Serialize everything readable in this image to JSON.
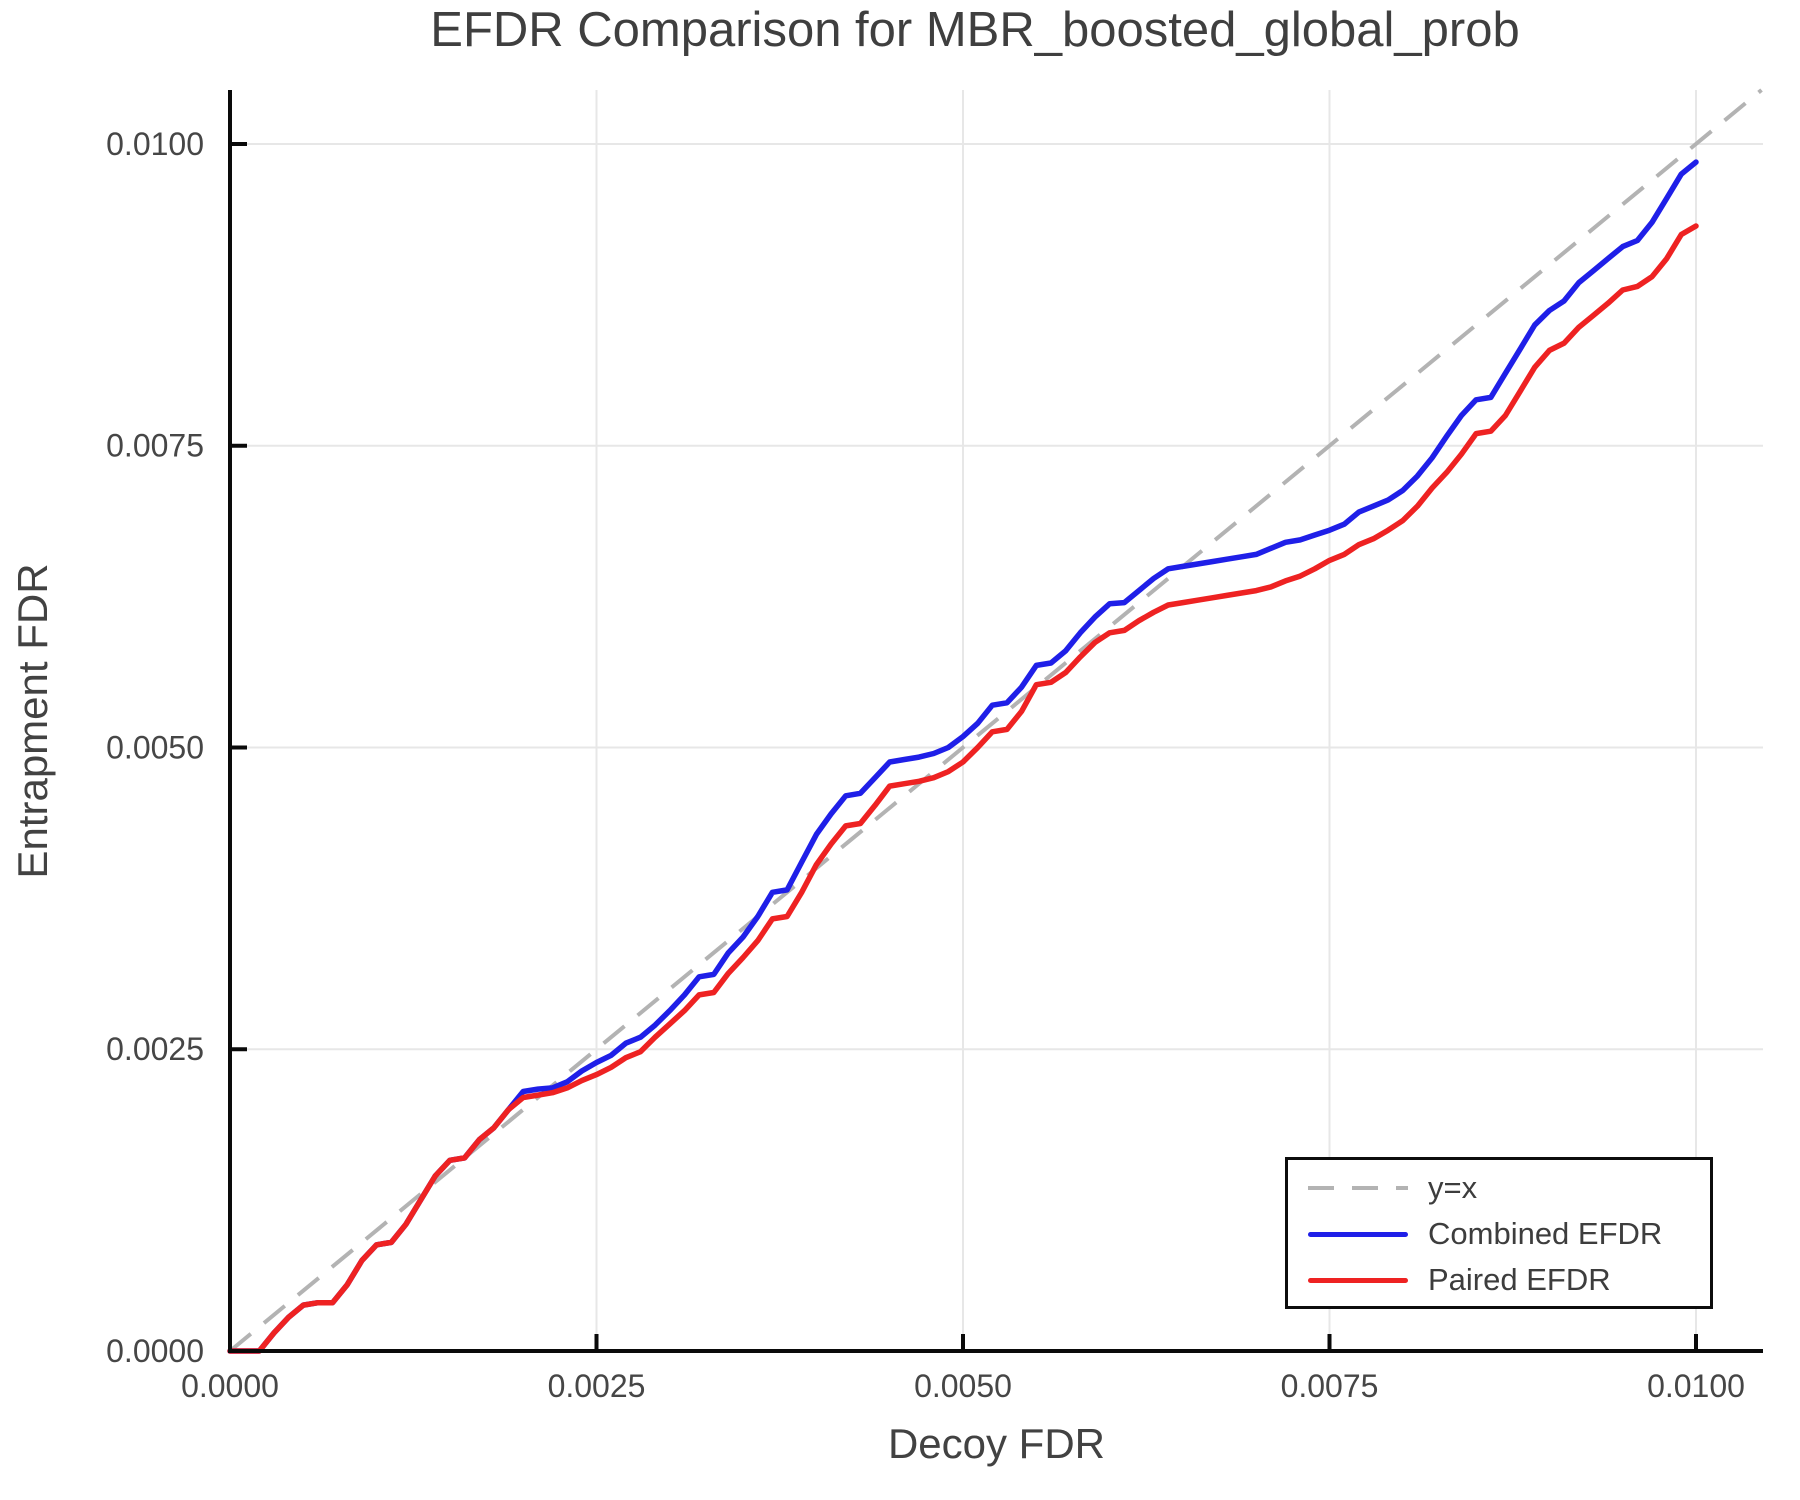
{
  "chart_data": {
    "type": "line",
    "title": "EFDR Comparison for MBR_boosted_global_prob",
    "xlabel": "Decoy FDR",
    "ylabel": "Entrapment FDR",
    "xlim": [
      0,
      0.010457
    ],
    "ylim": [
      0,
      0.010447
    ],
    "grid": true,
    "legend_position": "bottom-right",
    "x_ticks": {
      "values": [
        0,
        0.0025,
        0.005,
        0.0075,
        0.01
      ],
      "labels": [
        "0.0000",
        "0.0025",
        "0.0050",
        "0.0075",
        "0.0100"
      ]
    },
    "y_ticks": {
      "values": [
        0,
        0.0025,
        0.005,
        0.0075,
        0.01
      ],
      "labels": [
        "0.0000",
        "0.0025",
        "0.0050",
        "0.0075",
        "0.0100"
      ]
    },
    "identity_line": {
      "label": "y=x",
      "color": "#b3b3b3",
      "style": "dashed"
    },
    "x_step": 0.0001,
    "y_scale": 0.0001,
    "series": [
      {
        "name": "Combined EFDR",
        "color": "#1f1fe8",
        "y_values_x1e4": [
          0,
          0,
          0,
          1.5,
          2.8,
          3.8,
          4,
          4,
          5.5,
          7.5,
          8.8,
          9,
          10.5,
          12.5,
          14.5,
          15.8,
          16,
          17.5,
          18.5,
          20,
          21.5,
          21.7,
          21.8,
          22.3,
          23.2,
          23.9,
          24.5,
          25.5,
          26,
          27,
          28.2,
          29.5,
          31,
          31.2,
          33,
          34.3,
          36,
          38,
          38.2,
          40.5,
          42.8,
          44.5,
          46,
          46.2,
          47.5,
          48.8,
          49,
          49.2,
          49.5,
          50,
          50.9,
          52,
          53.5,
          53.7,
          55,
          56.8,
          57,
          58,
          59.5,
          60.8,
          61.9,
          62,
          63,
          64,
          64.8,
          65,
          65.2,
          65.4,
          65.6,
          65.8,
          66,
          66.5,
          67,
          67.2,
          67.6,
          68,
          68.5,
          69.5,
          70,
          70.5,
          71.3,
          72.5,
          74,
          75.8,
          77.5,
          78.8,
          79,
          81,
          83,
          85,
          86.2,
          87,
          88.5,
          89.5,
          90.5,
          91.5,
          92,
          93.5,
          95.5,
          97.5,
          98.5
        ]
      },
      {
        "name": "Paired EFDR",
        "color": "#ee2222",
        "y_values_x1e4": [
          0,
          0,
          0,
          1.5,
          2.8,
          3.8,
          4,
          4,
          5.5,
          7.5,
          8.8,
          9,
          10.5,
          12.5,
          14.5,
          15.8,
          16,
          17.5,
          18.5,
          20,
          21,
          21.2,
          21.4,
          21.8,
          22.4,
          22.9,
          23.5,
          24.3,
          24.8,
          26,
          27.1,
          28.2,
          29.5,
          29.7,
          31.3,
          32.6,
          34,
          35.8,
          36,
          38,
          40.3,
          42,
          43.5,
          43.7,
          45.2,
          46.8,
          47,
          47.2,
          47.5,
          48,
          48.8,
          50,
          51.3,
          51.5,
          53,
          55.2,
          55.4,
          56.2,
          57.5,
          58.7,
          59.5,
          59.7,
          60.5,
          61.2,
          61.8,
          62,
          62.2,
          62.4,
          62.6,
          62.8,
          63,
          63.3,
          63.8,
          64.2,
          64.8,
          65.5,
          66,
          66.8,
          67.3,
          68,
          68.8,
          70,
          71.5,
          72.8,
          74.3,
          76,
          76.2,
          77.5,
          79.5,
          81.5,
          82.9,
          83.5,
          84.8,
          85.8,
          86.8,
          87.9,
          88.2,
          89,
          90.5,
          92.5,
          93.2
        ]
      }
    ],
    "legend": [
      {
        "label": "y=x",
        "color": "#b3b3b3",
        "style": "dashed"
      },
      {
        "label": "Combined EFDR",
        "color": "#1f1fe8",
        "style": "solid"
      },
      {
        "label": "Paired EFDR",
        "color": "#ee2222",
        "style": "solid"
      }
    ]
  },
  "colors": {
    "background": "#ffffff",
    "grid": "#e7e7e7",
    "spine": "#0a0a0a",
    "tick_label": "#464646",
    "title": "#3f3f3f",
    "axis_label": "#424242"
  }
}
